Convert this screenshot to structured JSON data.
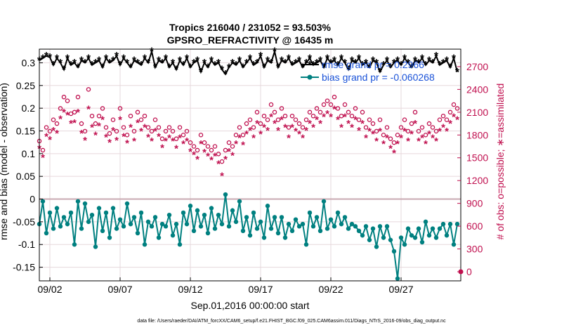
{
  "chart_data": {
    "type": "line",
    "title_line1": "Tropics 216040 / 231052 = 93.503%",
    "title_line2": "GPSRO_REFRACTIVITY @ 16435 m",
    "xlabel": "Sep.01,2016 00:00:00 start",
    "ylabel": "rmse and bias (model - observation)",
    "ylabel_right": "# of obs: o=possible; ∗=assimilated",
    "x_ticks": [
      "09/02",
      "09/07",
      "09/12",
      "09/17",
      "09/22",
      "09/27"
    ],
    "x_tick_days": [
      1,
      6,
      11,
      16,
      21,
      26
    ],
    "xlim": [
      0.25,
      30.25
    ],
    "y_ticks": [
      "0.3",
      "0.25",
      "0.2",
      "0.15",
      "0.1",
      "0.05",
      "0",
      "-0.05",
      "-0.1",
      "-0.15"
    ],
    "ylim": [
      -0.18,
      0.33
    ],
    "y2_ticks": [
      "2700",
      "2400",
      "2100",
      "1800",
      "1500",
      "1200",
      "900",
      "600",
      "300",
      "0"
    ],
    "y2lim": [
      -120,
      2930
    ],
    "grid": true,
    "legend": [
      {
        "label": "rmse grand pr = 0.2966",
        "color": "#000000",
        "marker": "star"
      },
      {
        "label": "bias grand pr = -0.060268",
        "color": "#008080",
        "marker": "circle"
      }
    ],
    "extra_point": {
      "x": 30.25,
      "y2": 0,
      "color": "#c0104f"
    },
    "footer": "data file: /Users/raeder/DAI/ATM_forcXX/CAM6_setup/f.e21.FHIST_BGC.f09_025.CAM6assim.011/Diags_NTrS_2016-09/obs_diag_output.nc",
    "series": [
      {
        "name": "rmse",
        "color": "#000000",
        "x": [
          0.25,
          0.5,
          0.75,
          1.0,
          1.25,
          1.5,
          1.75,
          2.0,
          2.25,
          2.5,
          2.75,
          3.0,
          3.25,
          3.5,
          3.75,
          4.0,
          4.25,
          4.5,
          4.75,
          5.0,
          5.25,
          5.5,
          5.75,
          6.0,
          6.25,
          6.5,
          6.75,
          7.0,
          7.25,
          7.5,
          7.75,
          8.0,
          8.25,
          8.5,
          8.75,
          9.0,
          9.25,
          9.5,
          9.75,
          10.0,
          10.25,
          10.5,
          10.75,
          11.0,
          11.25,
          11.5,
          11.75,
          12.0,
          12.25,
          12.5,
          12.75,
          13.0,
          13.25,
          13.5,
          13.75,
          14.0,
          14.25,
          14.5,
          14.75,
          15.0,
          15.25,
          15.5,
          15.75,
          16.0,
          16.25,
          16.5,
          16.75,
          17.0,
          17.25,
          17.5,
          17.75,
          18.0,
          18.25,
          18.5,
          18.75,
          19.0,
          19.25,
          19.5,
          19.75,
          20.0,
          20.25,
          20.5,
          20.75,
          21.0,
          21.25,
          21.5,
          21.75,
          22.0,
          22.25,
          22.5,
          22.75,
          23.0,
          23.25,
          23.5,
          23.75,
          24.0,
          24.25,
          24.5,
          24.75,
          25.0,
          25.25,
          25.5,
          25.75,
          26.0,
          26.25,
          26.5,
          26.75,
          27.0,
          27.25,
          27.5,
          27.75,
          28.0,
          28.25,
          28.5,
          28.75,
          29.0,
          29.25,
          29.5,
          29.75,
          30.0
        ],
        "values": [
          0.305,
          0.31,
          0.315,
          0.312,
          0.295,
          0.31,
          0.3,
          0.285,
          0.31,
          0.295,
          0.3,
          0.29,
          0.305,
          0.3,
          0.31,
          0.295,
          0.3,
          0.305,
          0.29,
          0.31,
          0.3,
          0.305,
          0.315,
          0.295,
          0.31,
          0.3,
          0.29,
          0.305,
          0.3,
          0.295,
          0.31,
          0.3,
          0.325,
          0.29,
          0.305,
          0.3,
          0.31,
          0.29,
          0.3,
          0.285,
          0.305,
          0.295,
          0.31,
          0.29,
          0.3,
          0.305,
          0.28,
          0.3,
          0.29,
          0.305,
          0.295,
          0.3,
          0.285,
          0.275,
          0.29,
          0.3,
          0.295,
          0.305,
          0.29,
          0.3,
          0.31,
          0.295,
          0.3,
          0.315,
          0.29,
          0.305,
          0.3,
          0.325,
          0.29,
          0.305,
          0.3,
          0.31,
          0.295,
          0.3,
          0.305,
          0.29,
          0.3,
          0.31,
          0.295,
          0.3,
          0.305,
          0.29,
          0.31,
          0.3,
          0.305,
          0.295,
          0.31,
          0.3,
          0.285,
          0.305,
          0.3,
          0.31,
          0.295,
          0.3,
          0.29,
          0.305,
          0.3,
          0.28,
          0.295,
          0.305,
          0.29,
          0.3,
          0.305,
          0.295,
          0.31,
          0.3,
          0.29,
          0.305,
          0.3,
          0.31,
          0.295,
          0.305,
          0.3,
          0.315,
          0.295,
          0.3,
          0.305,
          0.29,
          0.31,
          0.28
        ]
      },
      {
        "name": "bias",
        "color": "#008080",
        "x": [
          0.25,
          0.5,
          0.75,
          1.0,
          1.25,
          1.5,
          1.75,
          2.0,
          2.25,
          2.5,
          2.75,
          3.0,
          3.25,
          3.5,
          3.75,
          4.0,
          4.25,
          4.5,
          4.75,
          5.0,
          5.25,
          5.5,
          5.75,
          6.0,
          6.25,
          6.5,
          6.75,
          7.0,
          7.25,
          7.5,
          7.75,
          8.0,
          8.25,
          8.5,
          8.75,
          9.0,
          9.25,
          9.5,
          9.75,
          10.0,
          10.25,
          10.5,
          10.75,
          11.0,
          11.25,
          11.5,
          11.75,
          12.0,
          12.25,
          12.5,
          12.75,
          13.0,
          13.25,
          13.5,
          13.75,
          14.0,
          14.25,
          14.5,
          14.75,
          15.0,
          15.25,
          15.5,
          15.75,
          16.0,
          16.25,
          16.5,
          16.75,
          17.0,
          17.25,
          17.5,
          17.75,
          18.0,
          18.25,
          18.5,
          18.75,
          19.0,
          19.25,
          19.5,
          19.75,
          20.0,
          20.25,
          20.5,
          20.75,
          21.0,
          21.25,
          21.5,
          21.75,
          22.0,
          22.25,
          22.5,
          22.75,
          23.0,
          23.25,
          23.5,
          23.75,
          24.0,
          24.25,
          24.5,
          24.75,
          25.0,
          25.25,
          25.5,
          25.75,
          26.0,
          26.25,
          26.5,
          26.75,
          27.0,
          27.25,
          27.5,
          27.75,
          28.0,
          28.25,
          28.5,
          28.75,
          29.0,
          29.25,
          29.5,
          29.75,
          30.0
        ],
        "values": [
          -0.055,
          -0.005,
          -0.075,
          -0.03,
          -0.065,
          -0.02,
          -0.06,
          -0.04,
          -0.055,
          -0.03,
          -0.1,
          -0.005,
          -0.065,
          -0.01,
          -0.05,
          -0.035,
          -0.105,
          -0.02,
          -0.07,
          -0.03,
          -0.085,
          -0.02,
          -0.065,
          -0.045,
          -0.06,
          -0.01,
          -0.055,
          -0.04,
          -0.075,
          -0.03,
          -0.1,
          -0.05,
          -0.06,
          -0.04,
          -0.085,
          -0.055,
          -0.06,
          -0.035,
          -0.08,
          -0.055,
          -0.1,
          -0.03,
          -0.055,
          -0.015,
          -0.07,
          -0.025,
          -0.06,
          -0.035,
          -0.075,
          -0.02,
          -0.065,
          -0.035,
          -0.055,
          0.01,
          -0.06,
          -0.025,
          -0.05,
          -0.005,
          -0.07,
          -0.04,
          -0.08,
          -0.03,
          -0.065,
          -0.05,
          -0.085,
          -0.015,
          -0.065,
          -0.04,
          -0.075,
          -0.04,
          -0.085,
          -0.055,
          -0.07,
          -0.045,
          -0.06,
          -0.055,
          -0.1,
          -0.03,
          -0.06,
          -0.04,
          -0.07,
          -0.005,
          -0.065,
          -0.045,
          -0.06,
          -0.03,
          -0.055,
          -0.04,
          -0.065,
          -0.055,
          -0.06,
          -0.07,
          -0.08,
          -0.06,
          -0.09,
          -0.065,
          -0.105,
          -0.06,
          -0.085,
          -0.06,
          -0.09,
          -0.115,
          -0.175,
          -0.085,
          -0.1,
          -0.065,
          -0.08,
          -0.085,
          -0.065,
          -0.095,
          -0.05,
          -0.08,
          -0.065,
          -0.085,
          -0.065,
          -0.055,
          -0.08,
          -0.055,
          -0.1,
          -0.055
        ]
      },
      {
        "name": "possible",
        "color": "#c0104f",
        "axis": "right",
        "marker": "o",
        "x": [
          0.25,
          0.5,
          0.75,
          1.0,
          1.25,
          1.5,
          1.75,
          2.0,
          2.25,
          2.5,
          2.75,
          3.0,
          3.25,
          3.5,
          3.75,
          4.0,
          4.25,
          4.5,
          4.75,
          5.0,
          5.25,
          5.5,
          5.75,
          6.0,
          6.25,
          6.5,
          6.75,
          7.0,
          7.25,
          7.5,
          7.75,
          8.0,
          8.25,
          8.5,
          8.75,
          9.0,
          9.25,
          9.5,
          9.75,
          10.0,
          10.25,
          10.5,
          10.75,
          11.0,
          11.25,
          11.5,
          11.75,
          12.0,
          12.25,
          12.5,
          12.75,
          13.0,
          13.25,
          13.5,
          13.75,
          14.0,
          14.25,
          14.5,
          14.75,
          15.0,
          15.25,
          15.5,
          15.75,
          16.0,
          16.25,
          16.5,
          16.75,
          17.0,
          17.25,
          17.5,
          17.75,
          18.0,
          18.25,
          18.5,
          18.75,
          19.0,
          19.25,
          19.5,
          19.75,
          20.0,
          20.25,
          20.5,
          20.75,
          21.0,
          21.25,
          21.5,
          21.75,
          22.0,
          22.25,
          22.5,
          22.75,
          23.0,
          23.25,
          23.5,
          23.75,
          24.0,
          24.25,
          24.5,
          24.75,
          25.0,
          25.25,
          25.5,
          25.75,
          26.0,
          26.25,
          26.5,
          26.75,
          27.0,
          27.25,
          27.5,
          27.75,
          28.0,
          28.25,
          28.5,
          28.75,
          29.0,
          29.25,
          29.5,
          29.75,
          30.0
        ],
        "values": [
          1720,
          1600,
          1900,
          1850,
          2000,
          1950,
          2150,
          2300,
          2250,
          2080,
          2100,
          2300,
          1950,
          1850,
          2400,
          2050,
          1950,
          2050,
          2150,
          1900,
          1820,
          2000,
          1850,
          2150,
          1900,
          1800,
          2050,
          1850,
          2100,
          2000,
          2050,
          1900,
          1850,
          2000,
          1900,
          1750,
          1850,
          1900,
          1850,
          1750,
          1900,
          1800,
          1850,
          1700,
          1650,
          1600,
          1800,
          1700,
          1650,
          1600,
          1650,
          1550,
          1450,
          1600,
          1700,
          1650,
          1800,
          1900,
          1800,
          1950,
          2000,
          1900,
          2100,
          1950,
          2050,
          2000,
          2200,
          2100,
          2000,
          2150,
          2050,
          1900,
          2050,
          2000,
          1950,
          1900,
          2000,
          2100,
          2050,
          2150,
          2100,
          2200,
          2250,
          2200,
          2300,
          2150,
          2050,
          2200,
          2100,
          2050,
          2150,
          2000,
          2100,
          1900,
          2000,
          1950,
          1850,
          2000,
          1800,
          1900,
          1750,
          1700,
          1800,
          1900,
          2000,
          1850,
          1950,
          2100,
          1850,
          1900,
          1800,
          1950,
          1900,
          1850,
          2000,
          2050,
          2000,
          2100,
          2200,
          2150
        ]
      },
      {
        "name": "assimilated",
        "color": "#c0104f",
        "axis": "right",
        "marker": "*",
        "x": [
          0.25,
          0.5,
          0.75,
          1.0,
          1.25,
          1.5,
          1.75,
          2.0,
          2.25,
          2.5,
          2.75,
          3.0,
          3.25,
          3.5,
          3.75,
          4.0,
          4.25,
          4.5,
          4.75,
          5.0,
          5.25,
          5.5,
          5.75,
          6.0,
          6.25,
          6.5,
          6.75,
          7.0,
          7.25,
          7.5,
          7.75,
          8.0,
          8.25,
          8.5,
          8.75,
          9.0,
          9.25,
          9.5,
          9.75,
          10.0,
          10.25,
          10.5,
          10.75,
          11.0,
          11.25,
          11.5,
          11.75,
          12.0,
          12.25,
          12.5,
          12.75,
          13.0,
          13.25,
          13.5,
          13.75,
          14.0,
          14.25,
          14.5,
          14.75,
          15.0,
          15.25,
          15.5,
          15.75,
          16.0,
          16.25,
          16.5,
          16.75,
          17.0,
          17.25,
          17.5,
          17.75,
          18.0,
          18.25,
          18.5,
          18.75,
          19.0,
          19.25,
          19.5,
          19.75,
          20.0,
          20.25,
          20.5,
          20.75,
          21.0,
          21.25,
          21.5,
          21.75,
          22.0,
          22.25,
          22.5,
          22.75,
          23.0,
          23.25,
          23.5,
          23.75,
          24.0,
          24.25,
          24.5,
          24.75,
          25.0,
          25.25,
          25.5,
          25.75,
          26.0,
          26.25,
          26.5,
          26.75,
          27.0,
          27.25,
          27.5,
          27.75,
          28.0,
          28.25,
          28.5,
          28.75,
          29.0,
          29.25,
          29.5,
          29.75,
          30.0
        ],
        "values": [
          1620,
          1500,
          1780,
          1740,
          1860,
          1820,
          2010,
          2100,
          2060,
          1950,
          1960,
          2100,
          1820,
          1730,
          2140,
          1900,
          1800,
          1920,
          2000,
          1770,
          1700,
          1860,
          1730,
          2000,
          1780,
          1690,
          1900,
          1720,
          1960,
          1850,
          1900,
          1770,
          1720,
          1850,
          1780,
          1630,
          1720,
          1760,
          1720,
          1620,
          1760,
          1680,
          1720,
          1580,
          1540,
          1480,
          1680,
          1570,
          1520,
          1470,
          1520,
          1420,
          1260,
          1480,
          1580,
          1530,
          1680,
          1760,
          1670,
          1810,
          1860,
          1760,
          1950,
          1810,
          1900,
          1860,
          2040,
          1950,
          1860,
          2000,
          1900,
          1760,
          1900,
          1850,
          1810,
          1760,
          1860,
          1950,
          1900,
          2000,
          1950,
          2040,
          2080,
          2040,
          2140,
          2000,
          1900,
          2040,
          1950,
          1900,
          2000,
          1860,
          1950,
          1760,
          1850,
          1810,
          1720,
          1850,
          1680,
          1760,
          1620,
          1560,
          1680,
          1760,
          1850,
          1720,
          1810,
          1950,
          1720,
          1760,
          1680,
          1810,
          1760,
          1720,
          1850,
          1900,
          1850,
          1950,
          2040,
          2000
        ]
      }
    ]
  }
}
